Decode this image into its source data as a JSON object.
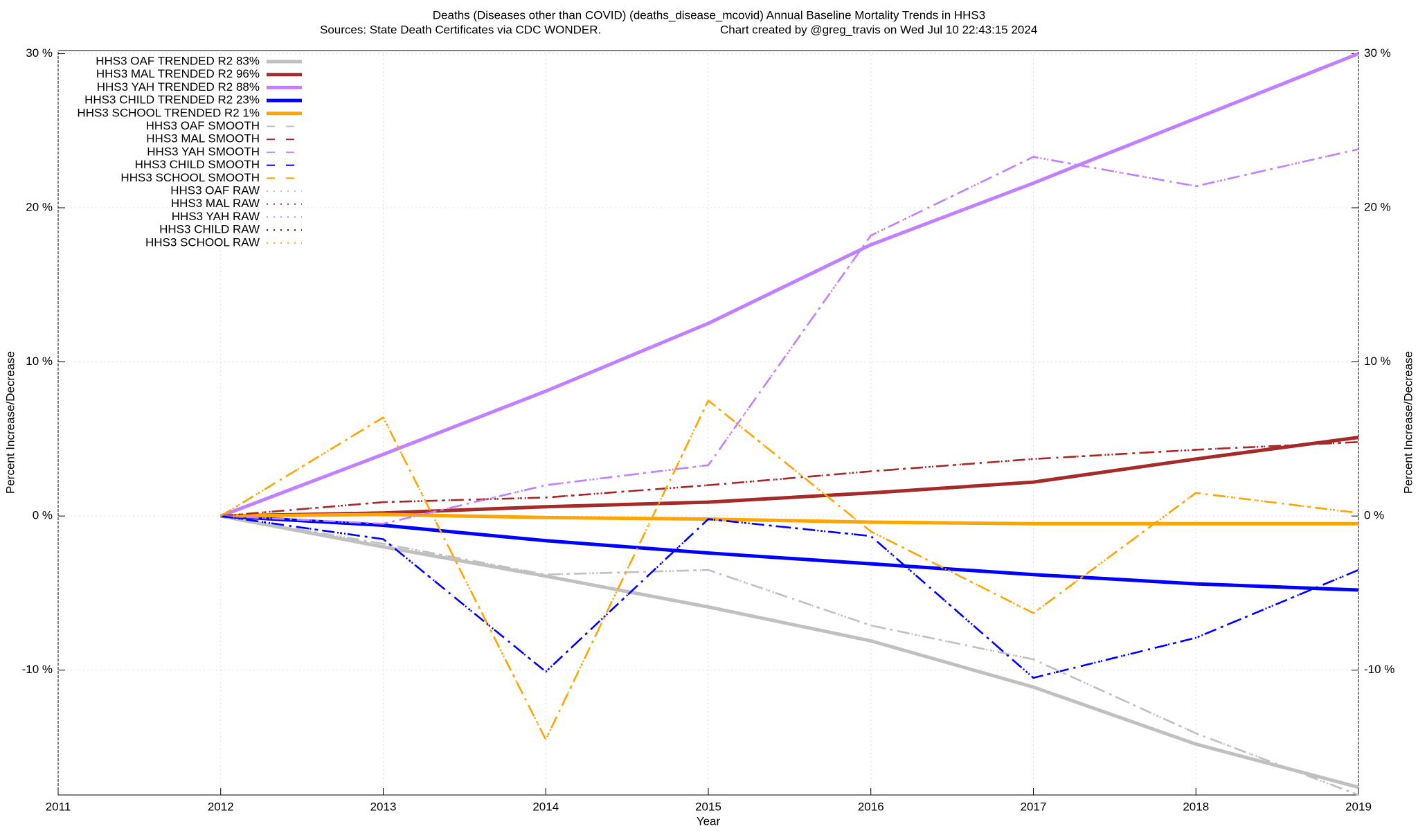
{
  "chart_data": {
    "type": "line",
    "title": "Deaths (Diseases other than COVID) (deaths_disease_mcovid)  Annual Baseline Mortality Trends in HHS3",
    "subtitle": "Sources: State Death Certificates via CDC WONDER.",
    "credit": "Chart created by @greg_travis on Wed Jul 10 22:43:15 2024",
    "xlabel": "Year",
    "ylabel": "Percent Increase/Decrease",
    "y2label": "Percent Increase/Decrease",
    "x": [
      2012,
      2013,
      2014,
      2015,
      2016,
      2017,
      2018,
      2019
    ],
    "xlim": [
      2011,
      2019
    ],
    "xticks": [
      2011,
      2012,
      2013,
      2014,
      2015,
      2016,
      2017,
      2018,
      2019
    ],
    "ylim": [
      -18.1,
      30.2
    ],
    "yticks": [
      {
        "value": -10,
        "label": "-10 %"
      },
      {
        "value": 0,
        "label": "0 %"
      },
      {
        "value": 10,
        "label": "10 %"
      },
      {
        "value": 20,
        "label": "20 %"
      },
      {
        "value": 30,
        "label": "30 %"
      }
    ],
    "y2lim": [
      -18.1,
      30.2
    ],
    "y2ticks": [
      {
        "value": -10,
        "label": "-10 %"
      },
      {
        "value": 0,
        "label": "0 %"
      },
      {
        "value": 10,
        "label": "10 %"
      },
      {
        "value": 20,
        "label": "20 %"
      },
      {
        "value": 30,
        "label": "30 %"
      }
    ],
    "grid": true,
    "legend": "upper left",
    "series": [
      {
        "name": "HHS3 OAF TRENDED R2  83%",
        "color": "#c0c0c0",
        "style": "solid",
        "values": [
          0,
          -2.0,
          -3.9,
          -5.9,
          -8.1,
          -11.1,
          -14.8,
          -17.6
        ]
      },
      {
        "name": "HHS3 MAL TRENDED R2  96%",
        "color": "#a52a2a",
        "style": "solid",
        "values": [
          0,
          0.2,
          0.6,
          0.9,
          1.5,
          2.2,
          3.7,
          5.1
        ]
      },
      {
        "name": "HHS3 YAH TRENDED R2  88%",
        "color": "#c080ff",
        "style": "solid",
        "values": [
          0,
          4.0,
          8.1,
          12.5,
          17.6,
          21.6,
          25.8,
          30.0
        ]
      },
      {
        "name": "HHS3 CHILD TRENDED R2  23%",
        "color": "#0000ff",
        "style": "solid",
        "values": [
          0,
          -0.6,
          -1.6,
          -2.4,
          -3.1,
          -3.8,
          -4.4,
          -4.8
        ]
      },
      {
        "name": "HHS3 SCHOOL TRENDED R2   1%",
        "color": "#ffa500",
        "style": "solid",
        "values": [
          0,
          0.1,
          -0.1,
          -0.2,
          -0.4,
          -0.5,
          -0.5,
          -0.5
        ]
      },
      {
        "name": "HHS3 OAF SMOOTH",
        "color": "#c0c0c0",
        "style": "dash-dot",
        "values": [
          0,
          -1.8,
          -3.8,
          -3.5,
          -7.1,
          -9.3,
          -14.1,
          -18.1
        ]
      },
      {
        "name": "HHS3 MAL SMOOTH",
        "color": "#a52a2a",
        "style": "dash-dot",
        "values": [
          0,
          0.9,
          1.2,
          2.0,
          2.9,
          3.7,
          4.3,
          4.8
        ]
      },
      {
        "name": "HHS3 YAH SMOOTH",
        "color": "#c080ff",
        "style": "dash-dot",
        "values": [
          0,
          -0.5,
          2.0,
          3.3,
          18.2,
          23.3,
          21.4,
          23.8
        ]
      },
      {
        "name": "HHS3 CHILD SMOOTH",
        "color": "#0000ff",
        "style": "dash-dot",
        "values": [
          0,
          -1.5,
          -10.1,
          -0.2,
          -1.3,
          -10.5,
          -7.9,
          -3.5
        ]
      },
      {
        "name": "HHS3 SCHOOL SMOOTH",
        "color": "#ffa500",
        "style": "dash-dot",
        "values": [
          0,
          6.4,
          -14.5,
          7.5,
          -1.0,
          -6.3,
          1.5,
          0.2
        ]
      },
      {
        "name": "HHS3 OAF RAW",
        "color": "#c0c0c0",
        "style": "dotted",
        "values": [
          0,
          -1.8,
          -3.8,
          -3.5,
          -7.1,
          -9.3,
          -14.1,
          -18.1
        ]
      },
      {
        "name": "HHS3 MAL RAW",
        "color": "#a52a2a",
        "style": "dotted",
        "values": [
          0,
          0.9,
          1.2,
          2.0,
          2.9,
          3.7,
          4.3,
          4.8
        ]
      },
      {
        "name": "HHS3 YAH RAW",
        "color": "#c080ff",
        "style": "dotted",
        "values": [
          0,
          -0.5,
          2.0,
          3.3,
          18.2,
          23.3,
          21.4,
          23.8
        ]
      },
      {
        "name": "HHS3 CHILD RAW",
        "color": "#0000ff",
        "style": "dotted",
        "values": [
          0,
          -1.5,
          -10.1,
          -0.2,
          -1.3,
          -10.5,
          -7.9,
          -3.5
        ]
      },
      {
        "name": "HHS3 SCHOOL RAW",
        "color": "#ffa500",
        "style": "dotted",
        "values": [
          0,
          6.4,
          -14.5,
          7.5,
          -1.0,
          -6.3,
          1.5,
          0.2
        ]
      }
    ]
  }
}
